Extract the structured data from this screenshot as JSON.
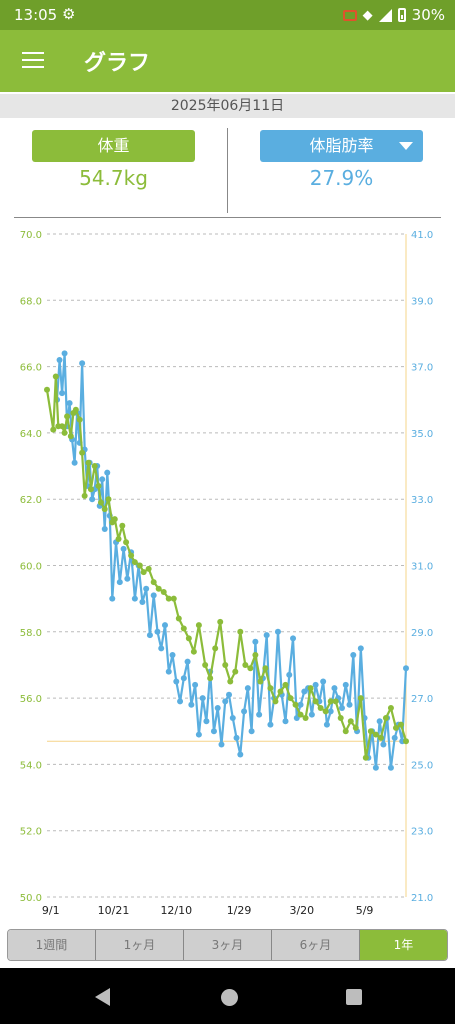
{
  "status_bar": {
    "time": "13:05",
    "battery": "30%"
  },
  "app_bar": {
    "title": "グラフ"
  },
  "date": "2025年06月11日",
  "weight_panel": {
    "label": "体重",
    "value": "54.7kg"
  },
  "fat_panel": {
    "label": "体脂肪率",
    "value": "27.9%"
  },
  "period_tabs": [
    {
      "label": "1週間",
      "active": false
    },
    {
      "label": "1ヶ月",
      "active": false
    },
    {
      "label": "3ヶ月",
      "active": false
    },
    {
      "label": "6ヶ月",
      "active": false
    },
    {
      "label": "1年",
      "active": true
    }
  ],
  "colors": {
    "weight": "#8cbc3a",
    "fat": "#5aaee0",
    "reference": "#f5d488"
  },
  "chart_data": {
    "type": "line",
    "x_tick_labels": [
      "9/1",
      "10/21",
      "12/10",
      "1/29",
      "3/20",
      "5/9"
    ],
    "x_ticks": [
      "2024-09-01",
      "2024-10-21",
      "2024-12-10",
      "2025-01-29",
      "2025-03-20",
      "2025-05-09"
    ],
    "x_range": [
      "2024-08-29",
      "2025-06-11"
    ],
    "y_left": {
      "range": [
        50.0,
        70.0
      ],
      "ticks": [
        50.0,
        52.0,
        54.0,
        56.0,
        58.0,
        60.0,
        62.0,
        64.0,
        66.0,
        68.0,
        70.0
      ]
    },
    "y_right": {
      "range": [
        21.0,
        41.0
      ],
      "ticks": [
        21.0,
        23.0,
        25.0,
        27.0,
        29.0,
        31.0,
        33.0,
        35.0,
        37.0,
        39.0,
        41.0
      ]
    },
    "reference_date": "2025-06-11",
    "reference_weight": 54.7,
    "grid": true,
    "series": [
      {
        "axis": "left",
        "points": [
          [
            "2024-08-29",
            65.3
          ],
          [
            "2024-09-03",
            64.1
          ],
          [
            "2024-09-05",
            65.7
          ],
          [
            "2024-09-07",
            64.2
          ],
          [
            "2024-09-10",
            64.2
          ],
          [
            "2024-09-12",
            64.0
          ],
          [
            "2024-09-14",
            64.5
          ],
          [
            "2024-09-17",
            63.9
          ],
          [
            "2024-09-19",
            64.6
          ],
          [
            "2024-09-21",
            64.7
          ],
          [
            "2024-09-24",
            64.4
          ],
          [
            "2024-09-26",
            63.4
          ],
          [
            "2024-09-28",
            62.1
          ],
          [
            "2024-10-01",
            63.1
          ],
          [
            "2024-10-03",
            62.3
          ],
          [
            "2024-10-06",
            63.0
          ],
          [
            "2024-10-09",
            62.4
          ],
          [
            "2024-10-11",
            61.9
          ],
          [
            "2024-10-14",
            61.7
          ],
          [
            "2024-10-17",
            62.0
          ],
          [
            "2024-10-20",
            61.3
          ],
          [
            "2024-10-22",
            61.4
          ],
          [
            "2024-10-25",
            60.8
          ],
          [
            "2024-10-28",
            61.2
          ],
          [
            "2024-10-31",
            60.7
          ],
          [
            "2024-11-04",
            60.3
          ],
          [
            "2024-11-07",
            60.1
          ],
          [
            "2024-11-11",
            60.0
          ],
          [
            "2024-11-14",
            59.8
          ],
          [
            "2024-11-18",
            59.9
          ],
          [
            "2024-11-22",
            59.5
          ],
          [
            "2024-11-26",
            59.3
          ],
          [
            "2024-11-30",
            59.2
          ],
          [
            "2024-12-04",
            59.0
          ],
          [
            "2024-12-08",
            59.0
          ],
          [
            "2024-12-12",
            58.4
          ],
          [
            "2024-12-16",
            58.1
          ],
          [
            "2024-12-20",
            57.8
          ],
          [
            "2024-12-24",
            57.4
          ],
          [
            "2024-12-28",
            58.2
          ],
          [
            "2025-01-02",
            57.0
          ],
          [
            "2025-01-06",
            56.6
          ],
          [
            "2025-01-10",
            57.5
          ],
          [
            "2025-01-14",
            58.3
          ],
          [
            "2025-01-18",
            57.0
          ],
          [
            "2025-01-22",
            56.5
          ],
          [
            "2025-01-26",
            56.8
          ],
          [
            "2025-01-30",
            58.0
          ],
          [
            "2025-02-03",
            57.0
          ],
          [
            "2025-02-07",
            56.9
          ],
          [
            "2025-02-11",
            57.3
          ],
          [
            "2025-02-15",
            56.5
          ],
          [
            "2025-02-19",
            56.9
          ],
          [
            "2025-02-23",
            56.3
          ],
          [
            "2025-02-27",
            55.9
          ],
          [
            "2025-03-03",
            56.2
          ],
          [
            "2025-03-07",
            56.4
          ],
          [
            "2025-03-11",
            56.0
          ],
          [
            "2025-03-15",
            55.8
          ],
          [
            "2025-03-19",
            55.5
          ],
          [
            "2025-03-23",
            55.4
          ],
          [
            "2025-03-27",
            56.3
          ],
          [
            "2025-03-31",
            55.9
          ],
          [
            "2025-04-04",
            55.7
          ],
          [
            "2025-04-08",
            55.6
          ],
          [
            "2025-04-12",
            55.9
          ],
          [
            "2025-04-16",
            55.9
          ],
          [
            "2025-04-20",
            55.4
          ],
          [
            "2025-04-24",
            55.0
          ],
          [
            "2025-04-28",
            55.3
          ],
          [
            "2025-05-02",
            55.1
          ],
          [
            "2025-05-06",
            56.0
          ],
          [
            "2025-05-10",
            54.2
          ],
          [
            "2025-05-14",
            55.0
          ],
          [
            "2025-05-18",
            54.9
          ],
          [
            "2025-05-22",
            54.8
          ],
          [
            "2025-05-26",
            55.4
          ],
          [
            "2025-05-30",
            55.7
          ],
          [
            "2025-06-03",
            55.1
          ],
          [
            "2025-06-07",
            55.2
          ],
          [
            "2025-06-11",
            54.7
          ]
        ]
      },
      {
        "axis": "right",
        "points": [
          [
            "2024-09-06",
            36.0
          ],
          [
            "2024-09-08",
            37.2
          ],
          [
            "2024-09-10",
            36.2
          ],
          [
            "2024-09-12",
            37.4
          ],
          [
            "2024-09-14",
            35.2
          ],
          [
            "2024-09-16",
            35.9
          ],
          [
            "2024-09-18",
            34.8
          ],
          [
            "2024-09-20",
            34.1
          ],
          [
            "2024-09-22",
            35.6
          ],
          [
            "2024-09-24",
            34.7
          ],
          [
            "2024-09-26",
            37.1
          ],
          [
            "2024-09-28",
            34.5
          ],
          [
            "2024-09-30",
            33.4
          ],
          [
            "2024-10-02",
            34.1
          ],
          [
            "2024-10-04",
            33.0
          ],
          [
            "2024-10-06",
            33.3
          ],
          [
            "2024-10-08",
            34.0
          ],
          [
            "2024-10-10",
            32.8
          ],
          [
            "2024-10-12",
            33.6
          ],
          [
            "2024-10-14",
            32.1
          ],
          [
            "2024-10-16",
            33.8
          ],
          [
            "2024-10-18",
            32.5
          ],
          [
            "2024-10-20",
            30.0
          ],
          [
            "2024-10-23",
            31.7
          ],
          [
            "2024-10-26",
            30.5
          ],
          [
            "2024-10-29",
            31.5
          ],
          [
            "2024-11-01",
            30.6
          ],
          [
            "2024-11-04",
            31.4
          ],
          [
            "2024-11-07",
            30.0
          ],
          [
            "2024-11-10",
            31.0
          ],
          [
            "2024-11-13",
            29.9
          ],
          [
            "2024-11-16",
            30.3
          ],
          [
            "2024-11-19",
            28.9
          ],
          [
            "2024-11-22",
            30.1
          ],
          [
            "2024-11-25",
            29.0
          ],
          [
            "2024-11-28",
            28.5
          ],
          [
            "2024-12-01",
            29.2
          ],
          [
            "2024-12-04",
            27.8
          ],
          [
            "2024-12-07",
            28.3
          ],
          [
            "2024-12-10",
            27.5
          ],
          [
            "2024-12-13",
            26.9
          ],
          [
            "2024-12-16",
            27.6
          ],
          [
            "2024-12-19",
            28.1
          ],
          [
            "2024-12-22",
            26.8
          ],
          [
            "2024-12-25",
            27.4
          ],
          [
            "2024-12-28",
            25.9
          ],
          [
            "2024-12-31",
            27.0
          ],
          [
            "2025-01-03",
            26.3
          ],
          [
            "2025-01-06",
            27.8
          ],
          [
            "2025-01-09",
            26.0
          ],
          [
            "2025-01-12",
            26.7
          ],
          [
            "2025-01-15",
            25.6
          ],
          [
            "2025-01-18",
            26.9
          ],
          [
            "2025-01-21",
            27.1
          ],
          [
            "2025-01-24",
            26.4
          ],
          [
            "2025-01-27",
            25.8
          ],
          [
            "2025-01-30",
            25.3
          ],
          [
            "2025-02-02",
            26.6
          ],
          [
            "2025-02-05",
            27.3
          ],
          [
            "2025-02-08",
            26.0
          ],
          [
            "2025-02-11",
            28.7
          ],
          [
            "2025-02-14",
            26.5
          ],
          [
            "2025-02-17",
            27.6
          ],
          [
            "2025-02-20",
            28.9
          ],
          [
            "2025-02-23",
            26.2
          ],
          [
            "2025-02-26",
            27.0
          ],
          [
            "2025-03-01",
            29.0
          ],
          [
            "2025-03-04",
            27.1
          ],
          [
            "2025-03-07",
            26.3
          ],
          [
            "2025-03-10",
            27.7
          ],
          [
            "2025-03-13",
            28.8
          ],
          [
            "2025-03-16",
            26.4
          ],
          [
            "2025-03-19",
            26.8
          ],
          [
            "2025-03-22",
            27.2
          ],
          [
            "2025-03-25",
            27.3
          ],
          [
            "2025-03-28",
            26.5
          ],
          [
            "2025-03-31",
            27.4
          ],
          [
            "2025-04-03",
            26.9
          ],
          [
            "2025-04-06",
            27.5
          ],
          [
            "2025-04-09",
            26.2
          ],
          [
            "2025-04-12",
            26.6
          ],
          [
            "2025-04-15",
            27.3
          ],
          [
            "2025-04-18",
            27.0
          ],
          [
            "2025-04-21",
            26.7
          ],
          [
            "2025-04-24",
            27.4
          ],
          [
            "2025-04-27",
            26.8
          ],
          [
            "2025-04-30",
            28.3
          ],
          [
            "2025-05-03",
            26.0
          ],
          [
            "2025-05-06",
            28.5
          ],
          [
            "2025-05-09",
            26.4
          ],
          [
            "2025-05-12",
            25.2
          ],
          [
            "2025-05-15",
            26.0
          ],
          [
            "2025-05-18",
            24.9
          ],
          [
            "2025-05-21",
            26.3
          ],
          [
            "2025-05-24",
            25.6
          ],
          [
            "2025-05-27",
            26.4
          ],
          [
            "2025-05-30",
            24.9
          ],
          [
            "2025-06-02",
            25.8
          ],
          [
            "2025-06-05",
            26.2
          ],
          [
            "2025-06-08",
            25.7
          ],
          [
            "2025-06-11",
            27.9
          ]
        ]
      }
    ]
  }
}
